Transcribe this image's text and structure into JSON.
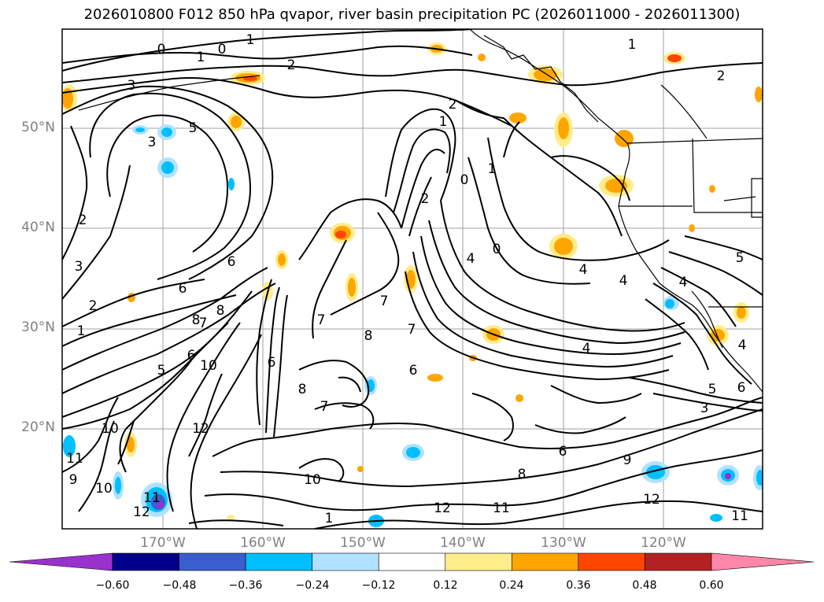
{
  "title": "2026010800 F012 850 hPa qvapor, river basin precipitation PC (2026011000 - 2026011300)",
  "lat_labels": [
    "50°N",
    "40°N",
    "30°N",
    "20°N"
  ],
  "lon_labels": [
    "170°W",
    "160°W",
    "150°W",
    "140°W",
    "130°W",
    "120°W"
  ],
  "colorbar": {
    "colors": [
      "#9932cc",
      "#00008b",
      "#3a5fcd",
      "#00bfff",
      "#b0e2ff",
      "#ffffff",
      "#ffec8b",
      "#ffa500",
      "#ff4500",
      "#b22222",
      "#ff88aa"
    ],
    "ticks": [
      "−0.60",
      "−0.48",
      "−0.36",
      "−0.24",
      "−0.12",
      "0.12",
      "0.24",
      "0.36",
      "0.48",
      "0.60"
    ]
  },
  "contour_labels": [
    "0",
    "1",
    "2",
    "0",
    "2",
    "3",
    "5",
    "3",
    "1",
    "2",
    "6",
    "3",
    "2",
    "1",
    "5",
    "6",
    "8",
    "7",
    "10",
    "8",
    "6",
    "12",
    "10",
    "11",
    "9",
    "11",
    "12",
    "10",
    "2",
    "1",
    "0",
    "1",
    "4",
    "0",
    "7",
    "8",
    "7",
    "6",
    "7",
    "8",
    "7",
    "6",
    "4",
    "4",
    "4",
    "5",
    "4",
    "4",
    "5",
    "6",
    "3",
    "9",
    "8",
    "6",
    "12",
    "12",
    "11",
    "11",
    "10",
    "1",
    "1",
    "2"
  ]
}
